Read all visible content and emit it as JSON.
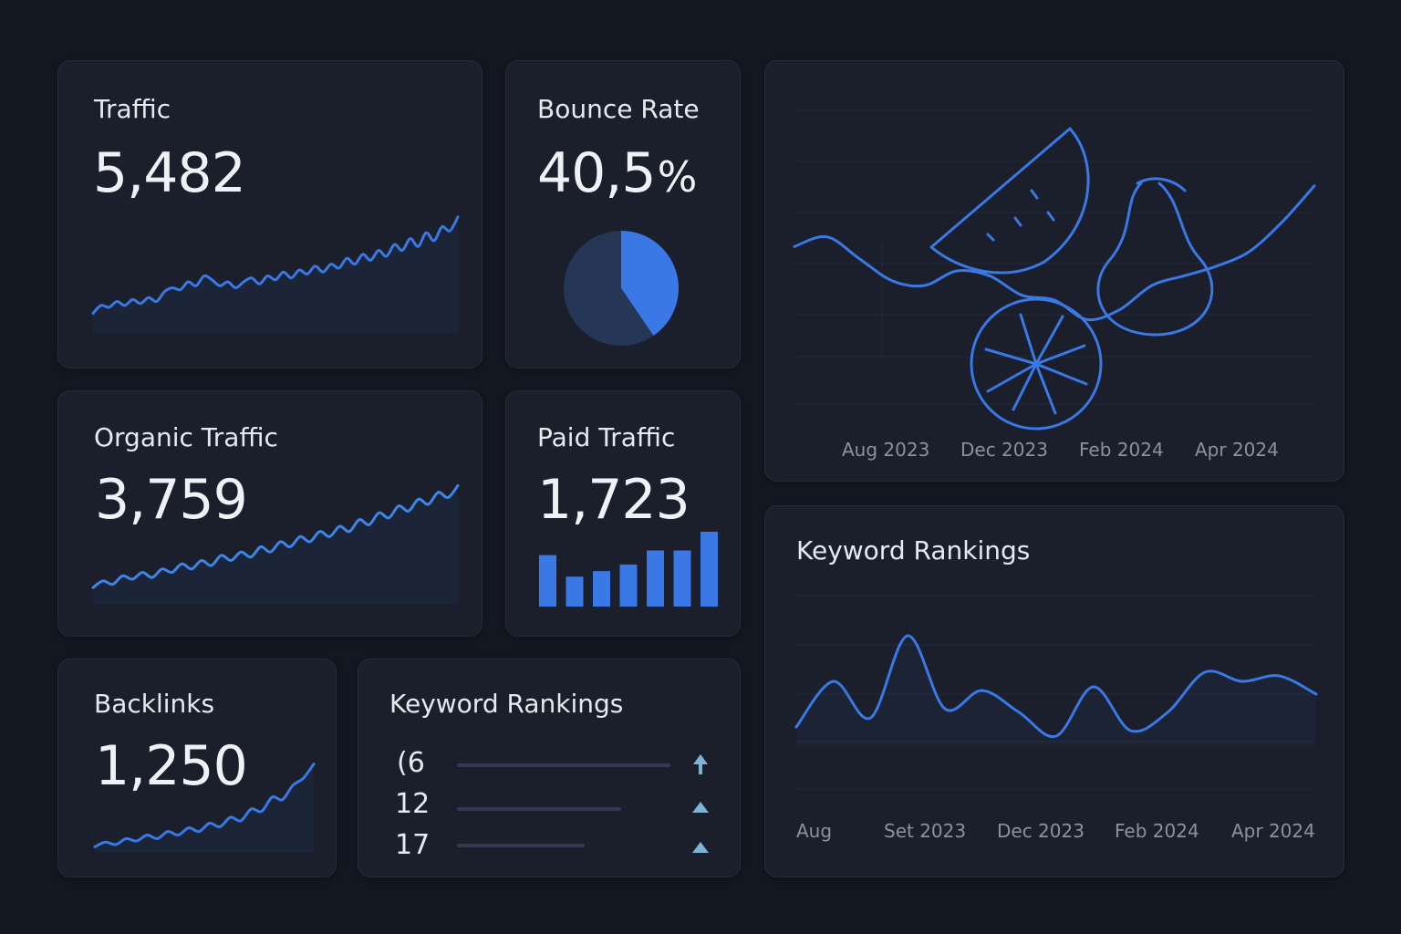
{
  "colors": {
    "background": "#141822",
    "card": "#1a1f2b",
    "accent": "#3a78e6",
    "accent_light": "#4a8df0",
    "muted": "#8a91a2"
  },
  "traffic": {
    "title": "Traffic",
    "value": "5,482",
    "chart_data": {
      "type": "line",
      "values": [
        30,
        34,
        33,
        36,
        34,
        37,
        35,
        38,
        36,
        41,
        43,
        42,
        46,
        44,
        49,
        47,
        44,
        46,
        43,
        46,
        48,
        45,
        49,
        47,
        51,
        48,
        52,
        50,
        54,
        51,
        55,
        53,
        58,
        55,
        60,
        57,
        62,
        59,
        65,
        62,
        68,
        64,
        71,
        67,
        74,
        72,
        79
      ]
    }
  },
  "bounce_rate": {
    "title": "Bounce Rate",
    "value": "40,5",
    "unit": "%",
    "chart_data": {
      "type": "pie",
      "slices": [
        {
          "value": 40.5,
          "color": "#3a78e6"
        },
        {
          "value": 59.5,
          "color": "#263657"
        }
      ]
    }
  },
  "organic_traffic": {
    "title": "Organic Traffic",
    "value": "3,759",
    "chart_data": {
      "type": "line",
      "values": [
        20,
        24,
        22,
        27,
        25,
        29,
        26,
        31,
        29,
        34,
        31,
        36,
        33,
        39,
        36,
        41,
        38,
        44,
        41,
        47,
        44,
        50,
        47,
        53,
        50,
        56,
        53,
        60,
        57,
        64,
        61,
        68,
        65,
        72,
        69,
        76,
        73,
        80
      ]
    }
  },
  "paid_traffic": {
    "title": "Paid Traffic",
    "value": "1,723",
    "chart_data": {
      "type": "bar",
      "values": [
        55,
        32,
        38,
        45,
        60,
        60,
        80
      ]
    }
  },
  "backlinks": {
    "title": "Backlinks",
    "value": "1,250",
    "chart_data": {
      "type": "line",
      "values": [
        10,
        14,
        12,
        17,
        15,
        20,
        17,
        23,
        20,
        26,
        23,
        30,
        27,
        35,
        32,
        42,
        40,
        52,
        50,
        62,
        68,
        80
      ]
    }
  },
  "keyword_list": {
    "title": "Keyword Rankings",
    "items": [
      {
        "rank": "(6",
        "progress": 1.0
      },
      {
        "rank": "12",
        "progress": 0.77
      },
      {
        "rank": "17",
        "progress": 0.6
      }
    ]
  },
  "top_chart": {
    "chart_data": {
      "type": "line",
      "x_labels": [
        "Aug 2023",
        "Dec 2023",
        "Feb 2024",
        "Apr 2024"
      ],
      "values": [
        60,
        64,
        55,
        46,
        44,
        50,
        48,
        40,
        38,
        30,
        34,
        44,
        48,
        52,
        58,
        70,
        85
      ]
    },
    "icons": [
      "watermelon-icon",
      "citrus-icon",
      "pear-icon"
    ]
  },
  "keyword_chart": {
    "title": "Keyword Rankings",
    "chart_data": {
      "type": "line",
      "x_labels": [
        "Aug",
        "Set  2023",
        "Dec 2023",
        "Feb 2024",
        "Apr 2024"
      ],
      "values": [
        30,
        55,
        35,
        80,
        40,
        50,
        38,
        25,
        52,
        28,
        38,
        60,
        55,
        58,
        48
      ]
    }
  }
}
